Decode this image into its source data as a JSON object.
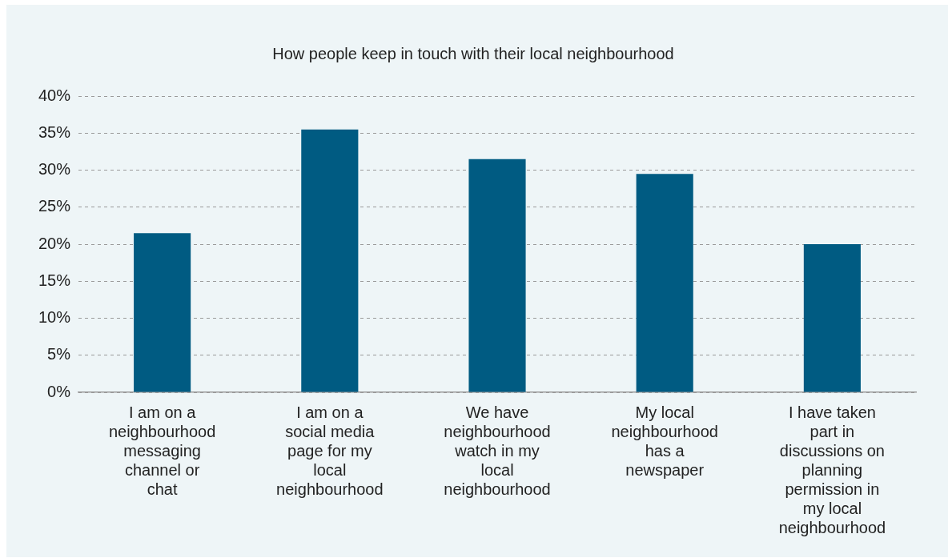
{
  "chart_data": {
    "type": "bar",
    "title": "How people keep in touch with their local neighbourhood",
    "categories": [
      "I am on a neighbourhood messaging channel or chat",
      "I am on a social media page for my local neighbourhood",
      "We have neighbourhood watch in my local neighbourhood",
      "My local neighbourhood has a newspaper",
      "I have taken part in discussions on planning permission in my local neighbourhood"
    ],
    "values": [
      21.5,
      35.5,
      31.5,
      29.5,
      20
    ],
    "color": "#005b82",
    "ylim": [
      0,
      40
    ],
    "yticks": [
      {
        "value": 0,
        "label": "0%"
      },
      {
        "value": 5,
        "label": "5%"
      },
      {
        "value": 10,
        "label": "10%"
      },
      {
        "value": 15,
        "label": "15%"
      },
      {
        "value": 20,
        "label": "20%"
      },
      {
        "value": 25,
        "label": "25%"
      },
      {
        "value": 30,
        "label": "30%"
      },
      {
        "value": 35,
        "label": "35%"
      },
      {
        "value": 40,
        "label": "40%"
      }
    ],
    "grid": "y",
    "legend": false
  }
}
